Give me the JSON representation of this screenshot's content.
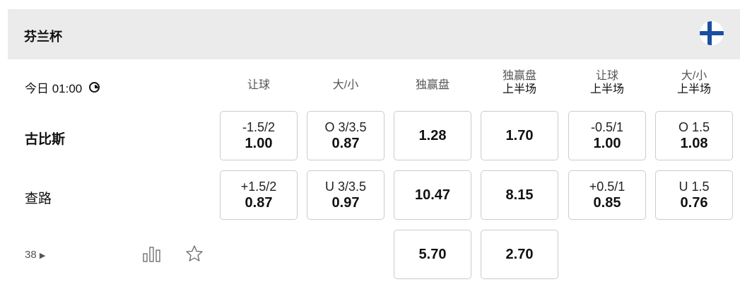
{
  "league": {
    "title": "芬兰杯",
    "flag": "finland-flag"
  },
  "match": {
    "time": "今日 01:00",
    "home": "古比斯",
    "away": "查路",
    "more_count": "38"
  },
  "columns": [
    {
      "line1": "让球",
      "line2": ""
    },
    {
      "line1": "大/小",
      "line2": ""
    },
    {
      "line1": "独赢盘",
      "line2": ""
    },
    {
      "line1": "独赢盘",
      "line2": "上半场"
    },
    {
      "line1": "让球",
      "line2": "上半场"
    },
    {
      "line1": "大/小",
      "line2": "上半场"
    }
  ],
  "rows": [
    [
      {
        "line": "-1.5/2",
        "odds": "1.00"
      },
      {
        "line": "O 3/3.5",
        "odds": "0.87"
      },
      {
        "line": "",
        "odds": "1.28"
      },
      {
        "line": "",
        "odds": "1.70"
      },
      {
        "line": "-0.5/1",
        "odds": "1.00"
      },
      {
        "line": "O 1.5",
        "odds": "1.08"
      }
    ],
    [
      {
        "line": "+1.5/2",
        "odds": "0.87"
      },
      {
        "line": "U 3/3.5",
        "odds": "0.97"
      },
      {
        "line": "",
        "odds": "10.47"
      },
      {
        "line": "",
        "odds": "8.15"
      },
      {
        "line": "+0.5/1",
        "odds": "0.85"
      },
      {
        "line": "U 1.5",
        "odds": "0.76"
      }
    ],
    [
      null,
      null,
      {
        "line": "",
        "odds": "5.70"
      },
      {
        "line": "",
        "odds": "2.70"
      },
      null,
      null
    ]
  ]
}
